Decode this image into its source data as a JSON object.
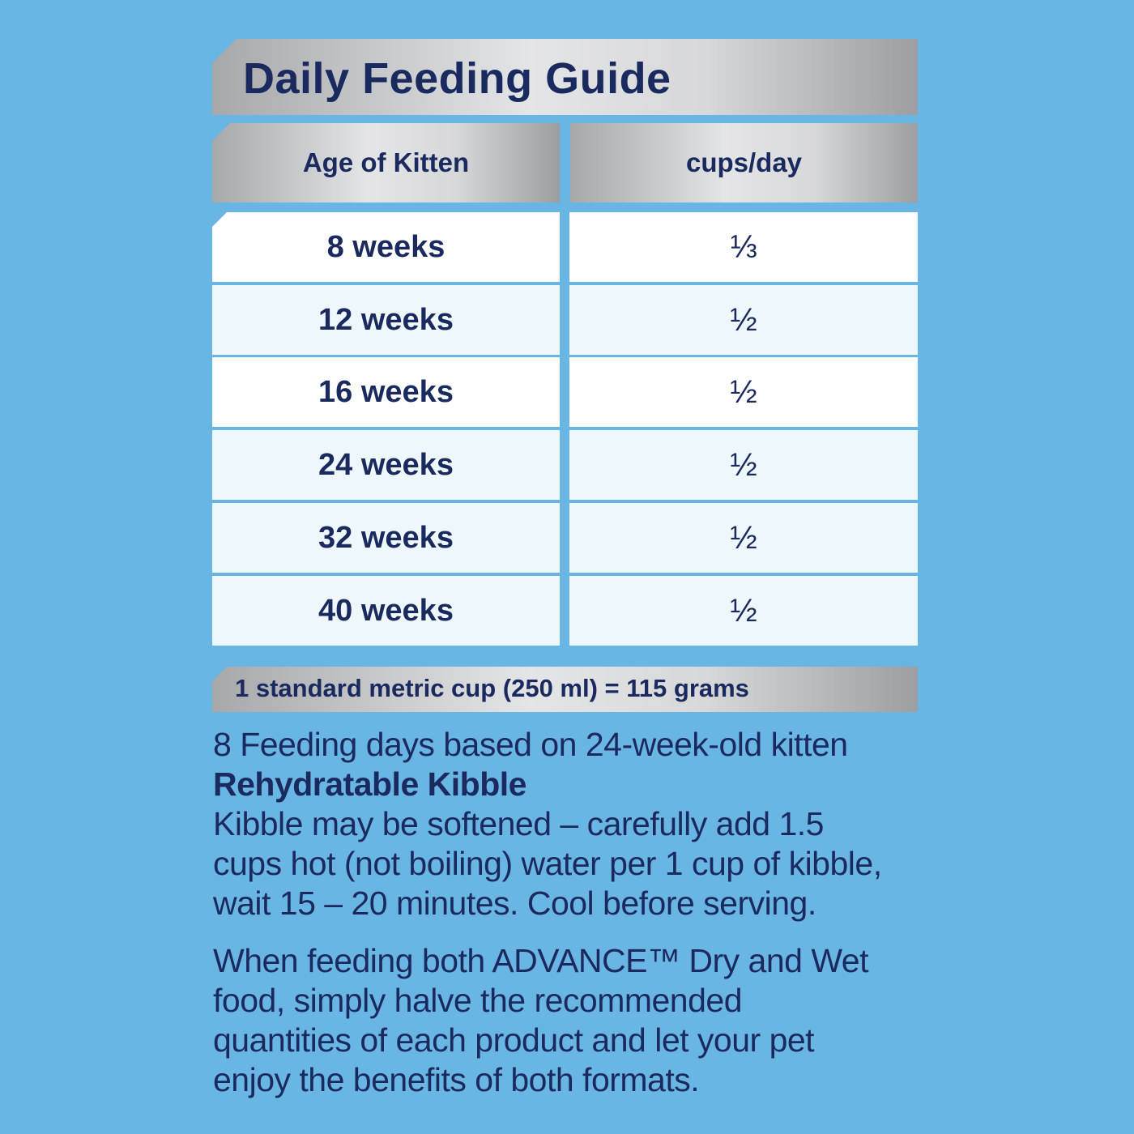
{
  "title": "Daily Feeding Guide",
  "table": {
    "headers": [
      "Age of Kitten",
      "cups/day"
    ],
    "rows": [
      {
        "age": "8 weeks",
        "cups": "⅓"
      },
      {
        "age": "12 weeks",
        "cups": "½"
      },
      {
        "age": "16 weeks",
        "cups": "½"
      },
      {
        "age": "24 weeks",
        "cups": "½"
      },
      {
        "age": "32 weeks",
        "cups": "½"
      },
      {
        "age": "40 weeks",
        "cups": "½"
      }
    ]
  },
  "conversion": "1 standard metric cup (250 ml) = 115 grams",
  "notes": {
    "feeding_days": "8 Feeding days based on 24-week-old kitten",
    "heading": "Rehydratable Kibble",
    "line1": "Kibble may be softened – carefully add 1.5",
    "line2": "cups hot (not boiling) water per 1 cup of kibble,",
    "line3": "wait 15 – 20 minutes.  Cool before serving.",
    "para2_line1": "When feeding both ADVANCE™ Dry and Wet",
    "para2_line2": "food, simply halve the recommended",
    "para2_line3": "quantities of each product and let your pet",
    "para2_line4": "enjoy the benefits of both formats."
  }
}
